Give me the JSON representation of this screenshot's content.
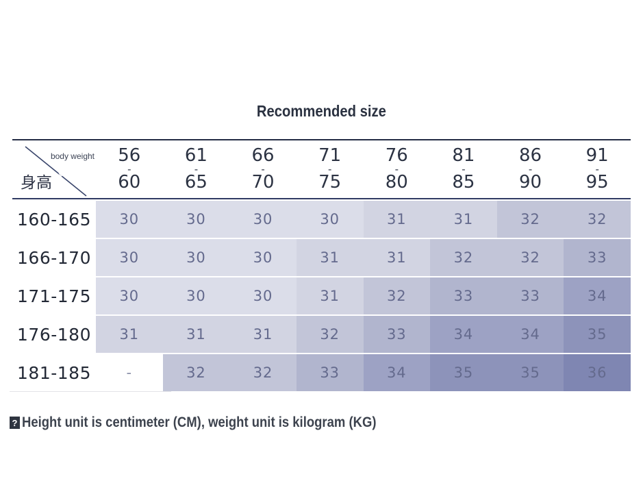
{
  "chart_data": {
    "type": "table",
    "title": "Recommended size",
    "corner": {
      "column_axis_label": "body weight",
      "row_axis_label": "身高"
    },
    "range_separator": "-",
    "weight_ranges": [
      {
        "from": "56",
        "to": "60"
      },
      {
        "from": "61",
        "to": "65"
      },
      {
        "from": "66",
        "to": "70"
      },
      {
        "from": "71",
        "to": "75"
      },
      {
        "from": "76",
        "to": "80"
      },
      {
        "from": "81",
        "to": "85"
      },
      {
        "from": "86",
        "to": "90"
      },
      {
        "from": "91",
        "to": "95"
      }
    ],
    "height_rows": [
      {
        "label": "160-165",
        "sizes": [
          "30",
          "30",
          "30",
          "30",
          "31",
          "31",
          "32",
          "32"
        ]
      },
      {
        "label": "166-170",
        "sizes": [
          "30",
          "30",
          "30",
          "31",
          "31",
          "32",
          "32",
          "33"
        ]
      },
      {
        "label": "171-175",
        "sizes": [
          "30",
          "30",
          "30",
          "31",
          "32",
          "33",
          "33",
          "34"
        ]
      },
      {
        "label": "176-180",
        "sizes": [
          "31",
          "31",
          "31",
          "32",
          "33",
          "34",
          "34",
          "35"
        ]
      },
      {
        "label": "181-185",
        "sizes": [
          "-",
          "32",
          "32",
          "33",
          "34",
          "35",
          "35",
          "36"
        ]
      }
    ],
    "note_icon": "?",
    "note": "Height unit is centimeter (CM), weight unit is kilogram (KG)"
  },
  "palette": {
    "30": "#dbdde9",
    "31": "#d2d4e2",
    "32": "#c2c5d8",
    "33": "#b1b5ce",
    "34": "#9da2c4",
    "35": "#8d93ba",
    "36": "#7f86b2",
    "-": "#ffffff"
  },
  "colors": {
    "header_top_rule": "#232c45",
    "header_bottom_rule": "#2f3a63",
    "diagonal_line": "#39456b",
    "cell_text": "#646a8d",
    "row_label_text": "#232936",
    "title_text": "#2a3140",
    "note_text": "#3d434e"
  }
}
